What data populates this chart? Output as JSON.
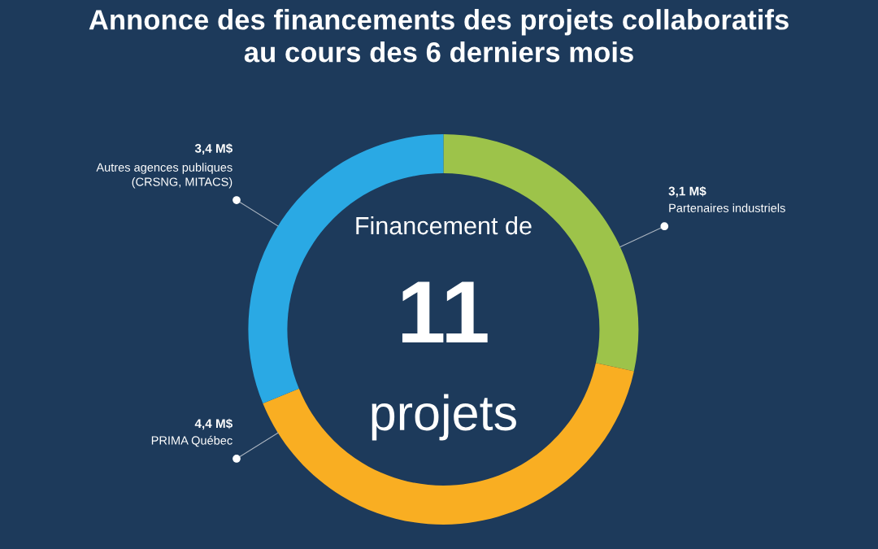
{
  "chart_data": {
    "type": "donut",
    "title": "Annonce des financements des projets collaboratifs\nau cours des 6 derniers mois",
    "categories": [
      "Partenaires industriels",
      "PRIMA Québec",
      "Autres agences publiques\n(CRSNG, MITACS)"
    ],
    "values": [
      3.1,
      4.4,
      3.4
    ],
    "value_labels": [
      "3,1 M$",
      "4,4 M$",
      "3,4 M$"
    ],
    "colors": [
      "#9dc34a",
      "#f9ae22",
      "#2aa9e4"
    ],
    "annotations": [
      "Financement de",
      "11",
      "projets"
    ],
    "legend": false
  }
}
